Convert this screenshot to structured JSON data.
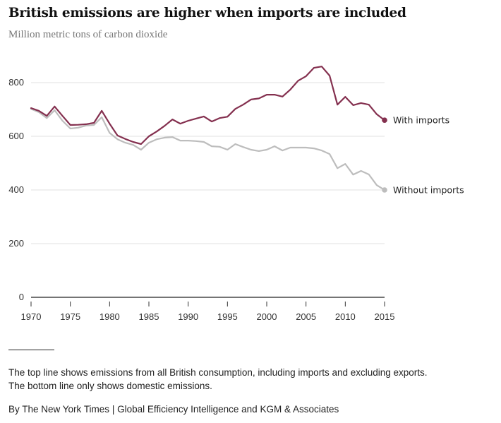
{
  "header": {
    "title": "British emissions are higher when imports are included",
    "subtitle": "Million metric tons of carbon dioxide"
  },
  "footer": {
    "note_line1": "The top line shows emissions from all British consumption, including imports and excluding exports.",
    "note_line2": "The bottom line only shows domestic emissions.",
    "credit": "By The New York Times | Global Efficiency Intelligence and KGM & Associates"
  },
  "chart_data": {
    "type": "line",
    "title": "British emissions are higher when imports are included",
    "subtitle": "Million metric tons of carbon dioxide",
    "xlabel": "",
    "ylabel": "Million metric tons of carbon dioxide",
    "xlim": [
      1970,
      2015
    ],
    "ylim": [
      0,
      800
    ],
    "grid": true,
    "y_ticks": [
      0,
      200,
      400,
      600,
      800
    ],
    "y_tick_labels": [
      "0",
      "200",
      "400",
      "600",
      "800"
    ],
    "x_ticks": [
      1970,
      1975,
      1980,
      1985,
      1990,
      1995,
      2000,
      2005,
      2010,
      2015
    ],
    "x_tick_labels": [
      "1970",
      "1975",
      "1980",
      "1985",
      "1990",
      "1995",
      "2000",
      "2005",
      "2010",
      "2015"
    ],
    "legend": "direct-labels-right",
    "x": [
      1970,
      1971,
      1972,
      1973,
      1974,
      1975,
      1976,
      1977,
      1978,
      1979,
      1980,
      1981,
      1982,
      1983,
      1984,
      1985,
      1986,
      1987,
      1988,
      1989,
      1990,
      1991,
      1992,
      1993,
      1994,
      1995,
      1996,
      1997,
      1998,
      1999,
      2000,
      2001,
      2002,
      2003,
      2004,
      2005,
      2006,
      2007,
      2008,
      2009,
      2010,
      2011,
      2012,
      2013,
      2014,
      2015
    ],
    "series": [
      {
        "name": "With imports",
        "color": "#84304f",
        "values": [
          705,
          695,
          676,
          711,
          676,
          642,
          643,
          645,
          650,
          695,
          647,
          603,
          590,
          579,
          571,
          600,
          618,
          639,
          663,
          647,
          658,
          666,
          674,
          655,
          668,
          673,
          702,
          718,
          737,
          741,
          755,
          755,
          748,
          774,
          807,
          824,
          855,
          860,
          826,
          718,
          747,
          716,
          724,
          718,
          682,
          660
        ]
      },
      {
        "name": "Without imports",
        "color": "#bdbdbd",
        "values": [
          702,
          690,
          668,
          697,
          658,
          629,
          632,
          640,
          642,
          671,
          613,
          589,
          576,
          568,
          550,
          576,
          589,
          595,
          597,
          584,
          584,
          582,
          579,
          563,
          561,
          550,
          571,
          560,
          550,
          545,
          550,
          563,
          547,
          558,
          558,
          558,
          555,
          547,
          534,
          481,
          497,
          457,
          471,
          458,
          418,
          400
        ]
      }
    ]
  }
}
